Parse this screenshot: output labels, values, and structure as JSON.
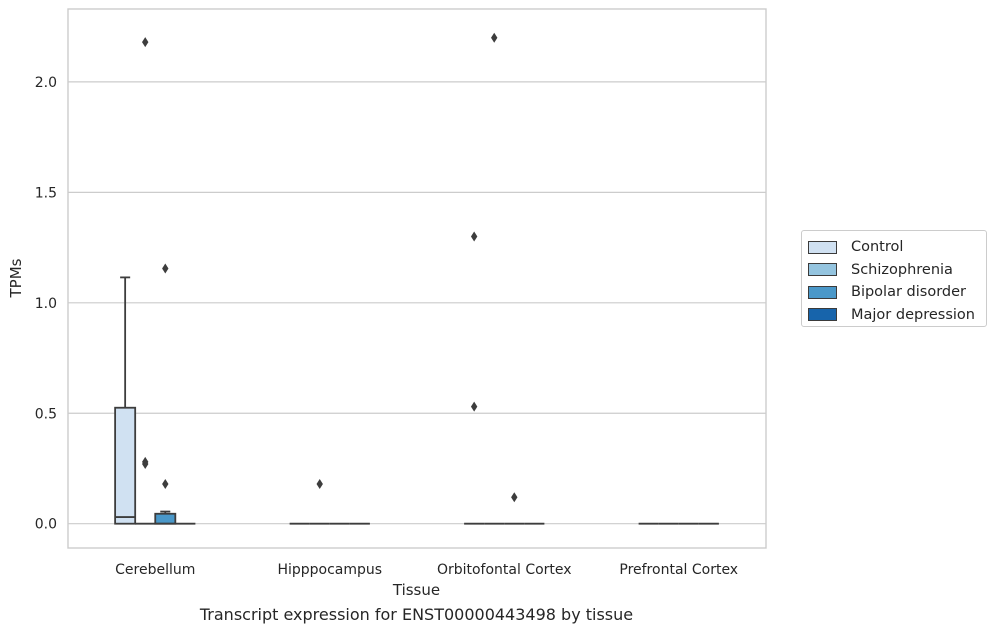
{
  "caption": "Transcript expression for ENST00000443498 by tissue",
  "colors": {
    "grid": "#cccccc",
    "frame": "#cccccc",
    "box_edge": "#3d3d3d",
    "outlier": "#3d3d3d"
  },
  "chart_data": {
    "type": "box",
    "xlabel": "Tissue",
    "ylabel": "TPMs",
    "ylim": [
      -0.11,
      2.33
    ],
    "yticks": [
      0.0,
      0.5,
      1.0,
      1.5,
      2.0
    ],
    "ytick_labels": [
      "0.0",
      "0.5",
      "1.0",
      "1.5",
      "2.0"
    ],
    "grid": true,
    "legend_position": "right",
    "categories": [
      "Cerebellum",
      "Hipppocampus",
      "Orbitofontal Cortex",
      "Prefrontal Cortex"
    ],
    "series": [
      {
        "name": "Control",
        "color": "#d0e1f2",
        "boxes": [
          {
            "whisker_low": 0.0,
            "q1": 0.0,
            "median": 0.03,
            "q3": 0.525,
            "whisker_high": 1.115,
            "outliers": []
          },
          {
            "whisker_low": 0.0,
            "q1": 0.0,
            "median": 0.0,
            "q3": 0.0,
            "whisker_high": 0.0,
            "outliers": []
          },
          {
            "whisker_low": 0.0,
            "q1": 0.0,
            "median": 0.0,
            "q3": 0.0,
            "whisker_high": 0.0,
            "outliers": [
              1.3,
              0.53
            ]
          },
          {
            "whisker_low": 0.0,
            "q1": 0.0,
            "median": 0.0,
            "q3": 0.0,
            "whisker_high": 0.0,
            "outliers": []
          }
        ]
      },
      {
        "name": "Schizophrenia",
        "color": "#94c4df",
        "boxes": [
          {
            "whisker_low": 0.0,
            "q1": 0.0,
            "median": 0.0,
            "q3": 0.0,
            "whisker_high": 0.0,
            "outliers": [
              2.18,
              0.28,
              0.27
            ]
          },
          {
            "whisker_low": 0.0,
            "q1": 0.0,
            "median": 0.0,
            "q3": 0.0,
            "whisker_high": 0.0,
            "outliers": [
              0.18
            ]
          },
          {
            "whisker_low": 0.0,
            "q1": 0.0,
            "median": 0.0,
            "q3": 0.0,
            "whisker_high": 0.0,
            "outliers": [
              2.2
            ]
          },
          {
            "whisker_low": 0.0,
            "q1": 0.0,
            "median": 0.0,
            "q3": 0.0,
            "whisker_high": 0.0,
            "outliers": []
          }
        ]
      },
      {
        "name": "Bipolar disorder",
        "color": "#4a98c9",
        "boxes": [
          {
            "whisker_low": 0.0,
            "q1": 0.0,
            "median": 0.0,
            "q3": 0.045,
            "whisker_high": 0.055,
            "outliers": [
              1.155,
              0.18
            ]
          },
          {
            "whisker_low": 0.0,
            "q1": 0.0,
            "median": 0.0,
            "q3": 0.0,
            "whisker_high": 0.0,
            "outliers": []
          },
          {
            "whisker_low": 0.0,
            "q1": 0.0,
            "median": 0.0,
            "q3": 0.0,
            "whisker_high": 0.0,
            "outliers": [
              0.12
            ]
          },
          {
            "whisker_low": 0.0,
            "q1": 0.0,
            "median": 0.0,
            "q3": 0.0,
            "whisker_high": 0.0,
            "outliers": []
          }
        ]
      },
      {
        "name": "Major depression",
        "color": "#1764ab",
        "boxes": [
          {
            "whisker_low": 0.0,
            "q1": 0.0,
            "median": 0.0,
            "q3": 0.0,
            "whisker_high": 0.0,
            "outliers": []
          },
          {
            "whisker_low": 0.0,
            "q1": 0.0,
            "median": 0.0,
            "q3": 0.0,
            "whisker_high": 0.0,
            "outliers": []
          },
          {
            "whisker_low": 0.0,
            "q1": 0.0,
            "median": 0.0,
            "q3": 0.0,
            "whisker_high": 0.0,
            "outliers": []
          },
          {
            "whisker_low": 0.0,
            "q1": 0.0,
            "median": 0.0,
            "q3": 0.0,
            "whisker_high": 0.0,
            "outliers": []
          }
        ]
      }
    ]
  }
}
